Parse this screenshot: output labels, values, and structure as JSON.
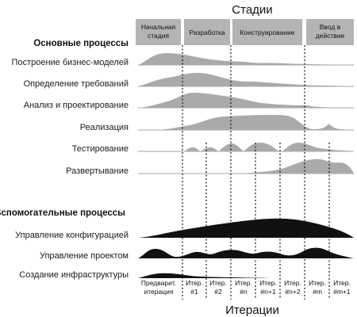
{
  "diagram": {
    "top_title": "Стадии",
    "bottom_title": "Итерации",
    "main_section": "Основные процессы",
    "support_section": "Вспомогательные процессы",
    "phases": [
      {
        "lines": [
          "Начальная",
          "стадия"
        ]
      },
      {
        "lines": [
          "Разработка"
        ]
      },
      {
        "lines": [
          "Конструирование"
        ]
      },
      {
        "lines": [
          "Ввод в",
          "действие"
        ]
      }
    ],
    "main_disciplines": [
      {
        "label": "Построение бизнес-моделей"
      },
      {
        "label": "Определение требований"
      },
      {
        "label": "Анализ и проектирование"
      },
      {
        "label": "Реализация"
      },
      {
        "label": "Тестирование"
      },
      {
        "label": "Развертывание"
      }
    ],
    "support_disciplines": [
      {
        "label": "Управление конфигурацией"
      },
      {
        "label": "Управление проектом"
      },
      {
        "label": "Создание инфраструктуры"
      }
    ],
    "iterations": [
      {
        "lines": [
          "Предварит.",
          "итерация"
        ]
      },
      {
        "lines": [
          "Итер.",
          "#1"
        ]
      },
      {
        "lines": [
          "Итер.",
          "#2"
        ]
      },
      {
        "lines": [
          "Итер.",
          "#n"
        ]
      },
      {
        "lines": [
          "Итер.",
          "#n+1"
        ]
      },
      {
        "lines": [
          "Итер.",
          "#n+2"
        ]
      },
      {
        "lines": [
          "Итер.",
          "#m"
        ]
      },
      {
        "lines": [
          "Итер.",
          "#m+1"
        ]
      }
    ],
    "colors": {
      "main_fill": "#aaaaaa",
      "support_fill": "#111111",
      "phase_box": "#b4b4b4"
    }
  }
}
